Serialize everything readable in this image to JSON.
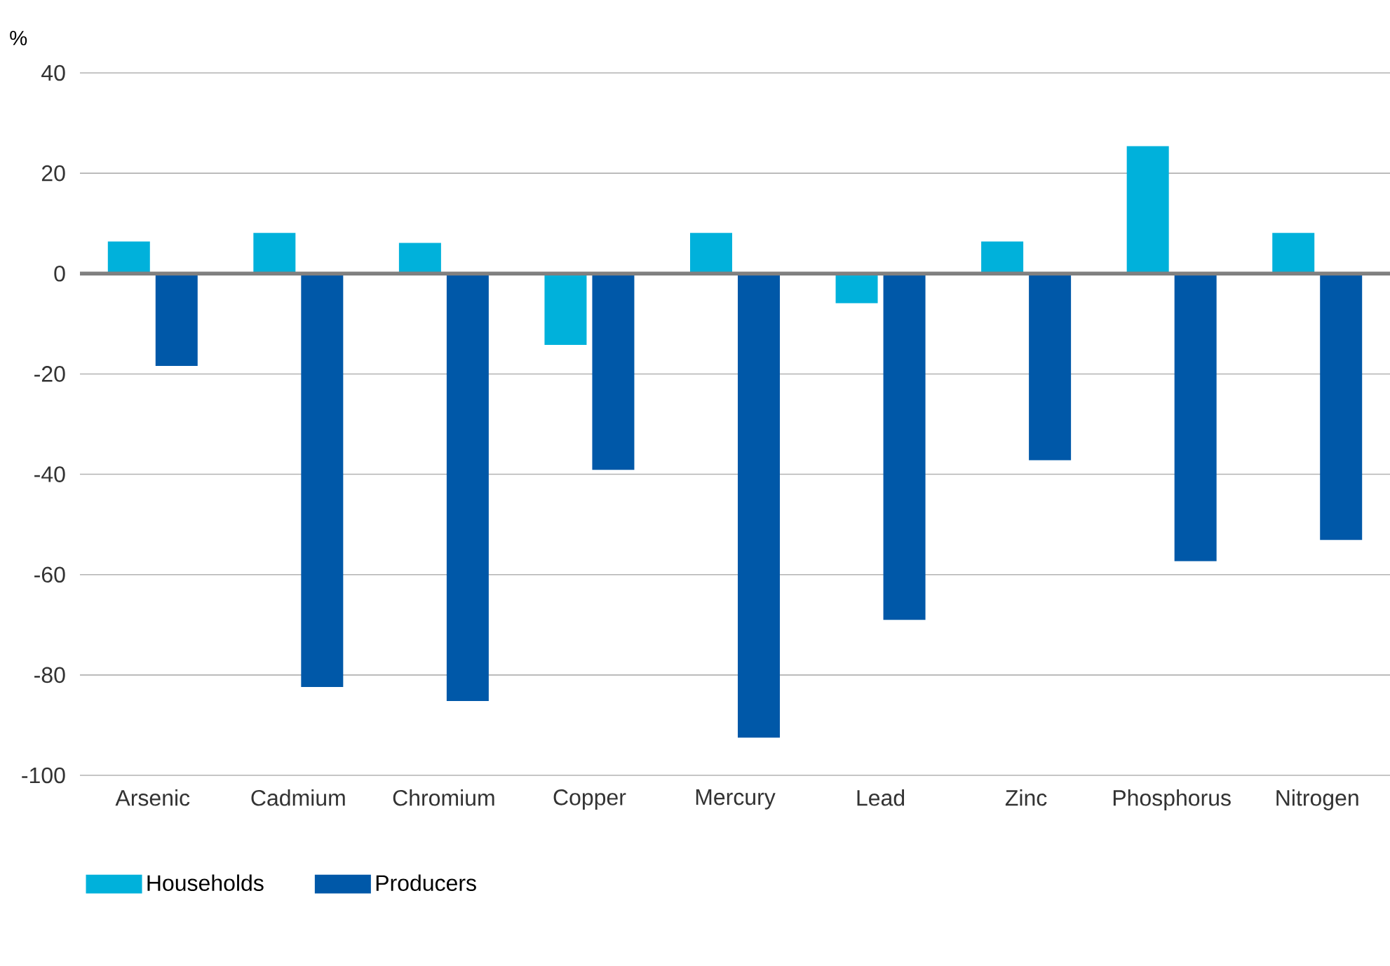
{
  "chart_data": {
    "type": "bar",
    "ylabel": "%",
    "categories": [
      "Arsenic",
      "Cadmium",
      "Chromium",
      "Copper",
      "Mercury",
      "Lead",
      "Zinc",
      "Phosphorus",
      "Nitrogen"
    ],
    "series": [
      {
        "name": "Households",
        "color": "#00b1db",
        "values": [
          6.4,
          8.1,
          6.1,
          -14.2,
          8.1,
          -5.9,
          6.4,
          25.4,
          8.1
        ]
      },
      {
        "name": "Producers",
        "color": "#0058a8",
        "values": [
          -18.4,
          -82.4,
          -85.2,
          -39.1,
          -92.5,
          -69.0,
          -37.2,
          -57.3,
          -53.1
        ]
      }
    ],
    "ylim": [
      -100,
      40
    ],
    "yticks": [
      -100,
      -80,
      -60,
      -40,
      -20,
      0,
      20,
      40
    ],
    "grid": "y",
    "legend": "bottom left"
  }
}
